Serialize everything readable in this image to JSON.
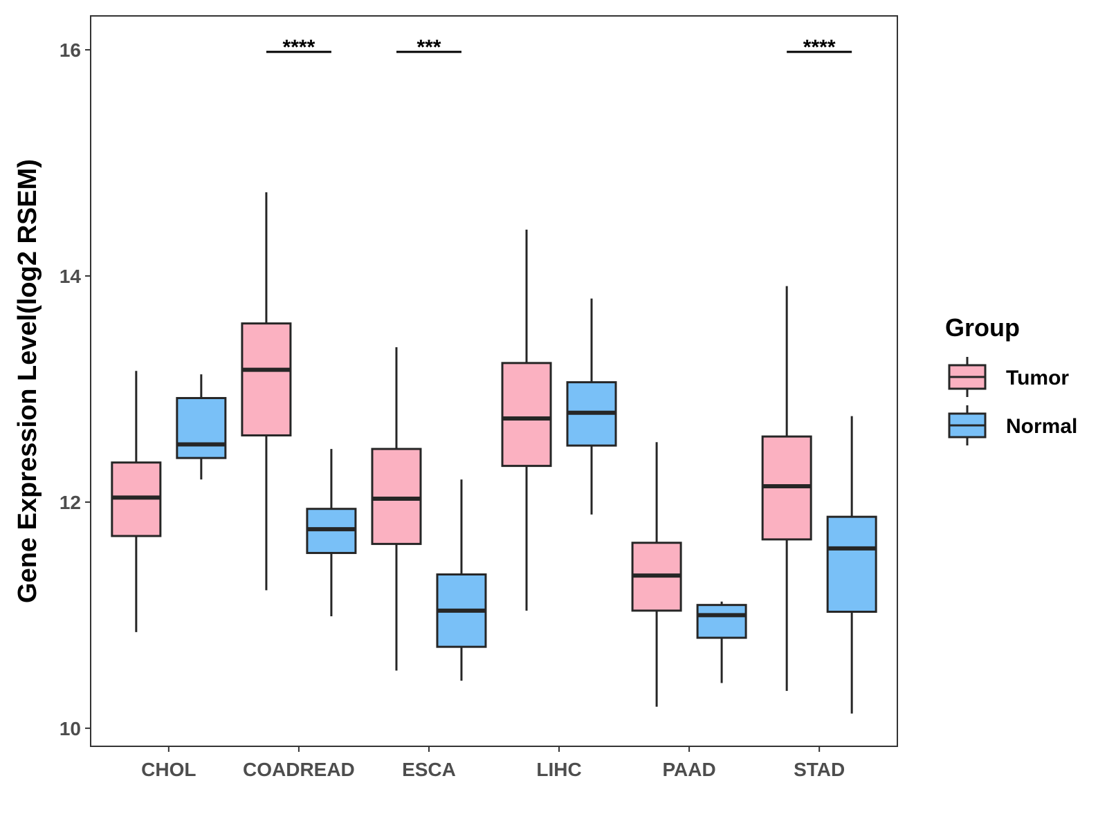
{
  "chart_data": {
    "type": "boxplot",
    "title": "",
    "xlabel": "",
    "ylabel": "Gene Expression Level(log2 RSEM)",
    "ylim": [
      9.84,
      16.3
    ],
    "yticks": [
      10,
      12,
      14,
      16
    ],
    "categories": [
      "CHOL",
      "COADREAD",
      "ESCA",
      "LIHC",
      "PAAD",
      "STAD"
    ],
    "legend": {
      "title": "Group",
      "position": "right"
    },
    "series": [
      {
        "name": "Tumor",
        "color": "#fbb1c1",
        "boxes": [
          {
            "min": 10.85,
            "q1": 11.7,
            "median": 12.04,
            "q3": 12.35,
            "max": 13.16
          },
          {
            "min": 11.22,
            "q1": 12.59,
            "median": 13.17,
            "q3": 13.58,
            "max": 14.74
          },
          {
            "min": 10.51,
            "q1": 11.63,
            "median": 12.03,
            "q3": 12.47,
            "max": 13.37
          },
          {
            "min": 11.04,
            "q1": 12.32,
            "median": 12.74,
            "q3": 13.23,
            "max": 14.41
          },
          {
            "min": 10.19,
            "q1": 11.04,
            "median": 11.35,
            "q3": 11.64,
            "max": 12.53
          },
          {
            "min": 10.33,
            "q1": 11.67,
            "median": 12.14,
            "q3": 12.58,
            "max": 13.91
          }
        ]
      },
      {
        "name": "Normal",
        "color": "#79c0f7",
        "boxes": [
          {
            "min": 12.2,
            "q1": 12.39,
            "median": 12.51,
            "q3": 12.92,
            "max": 13.13
          },
          {
            "min": 10.99,
            "q1": 11.55,
            "median": 11.76,
            "q3": 11.94,
            "max": 12.47
          },
          {
            "min": 10.42,
            "q1": 10.72,
            "median": 11.04,
            "q3": 11.36,
            "max": 12.2
          },
          {
            "min": 11.89,
            "q1": 12.5,
            "median": 12.79,
            "q3": 13.06,
            "max": 13.8
          },
          {
            "min": 10.4,
            "q1": 10.8,
            "median": 11.0,
            "q3": 11.09,
            "max": 11.12
          },
          {
            "min": 10.13,
            "q1": 11.03,
            "median": 11.59,
            "q3": 11.87,
            "max": 12.76
          }
        ]
      }
    ],
    "significance": [
      {
        "category": "COADREAD",
        "label": "****"
      },
      {
        "category": "ESCA",
        "label": "***"
      },
      {
        "category": "STAD",
        "label": "****"
      }
    ]
  }
}
